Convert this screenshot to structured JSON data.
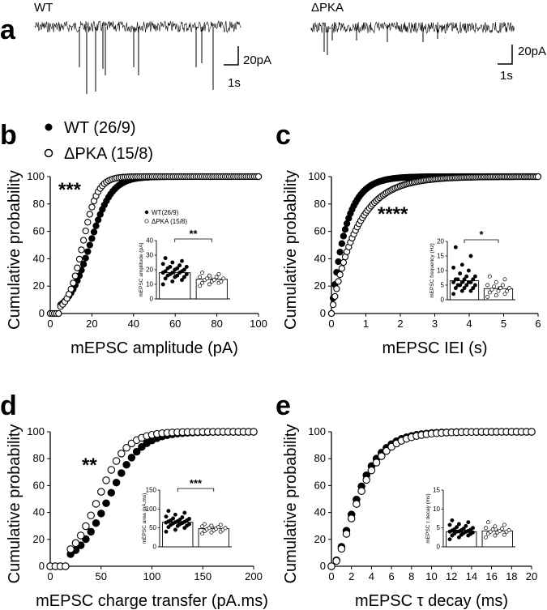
{
  "panel_letters": [
    "a",
    "b",
    "c",
    "d",
    "e"
  ],
  "traces": {
    "wt_label": "WT",
    "dpka_label": "ΔPKA",
    "scale_amp": "20pA",
    "scale_time": "1s"
  },
  "legend": {
    "wt": "WT (26/9)",
    "dpka": "ΔPKA (15/8)"
  },
  "chart_data": [
    {
      "id": "b",
      "type": "scatter",
      "xlabel": "mEPSC amplitude (pA)",
      "ylabel": "Cumulative probability",
      "xlim": [
        0,
        100
      ],
      "ylim": [
        0,
        100
      ],
      "xticks": [
        0,
        20,
        40,
        60,
        80,
        100
      ],
      "yticks": [
        0,
        20,
        40,
        60,
        80,
        100
      ],
      "significance": "***",
      "series": [
        {
          "name": "WT (26/9)",
          "cdf": {
            "kind": "logistic",
            "m": 19,
            "s": 5.2,
            "x0": 5
          },
          "points": 100
        },
        {
          "name": "ΔPKA (15/8)",
          "cdf": {
            "kind": "logistic",
            "m": 15.5,
            "s": 3.6,
            "x0": 5
          },
          "points": 100
        }
      ],
      "inset": {
        "ylabel": "mEPSC amplitude (pA)",
        "ylim": [
          0,
          40
        ],
        "yticks": [
          0,
          10,
          20,
          30,
          40
        ],
        "legend": [
          "WT(26/9)",
          "ΔPKA (15/8)"
        ],
        "significance": "**",
        "groups": [
          {
            "name": "WT",
            "mean": 18,
            "values": [
              10,
              12,
              13,
              14,
              15,
              15,
              16,
              16,
              17,
              17,
              18,
              18,
              18,
              19,
              19,
              20,
              20,
              21,
              21,
              22,
              22,
              23,
              24,
              25,
              26,
              28
            ]
          },
          {
            "name": "ΔPKA",
            "mean": 13.5,
            "values": [
              9,
              10,
              11,
              11,
              12,
              12,
              13,
              13,
              14,
              14,
              15,
              15,
              16,
              17,
              18
            ]
          }
        ]
      }
    },
    {
      "id": "c",
      "type": "scatter",
      "xlabel": "mEPSC IEI (s)",
      "ylabel": "Cumulative probability",
      "xlim": [
        0,
        6
      ],
      "ylim": [
        0,
        100
      ],
      "xticks": [
        0,
        1,
        2,
        3,
        4,
        5,
        6
      ],
      "yticks": [
        0,
        20,
        40,
        60,
        80,
        100
      ],
      "significance": "****",
      "series": [
        {
          "name": "WT (26/9)",
          "cdf": {
            "kind": "exp",
            "tau": 0.42
          },
          "points": 120
        },
        {
          "name": "ΔPKA (15/8)",
          "cdf": {
            "kind": "exp",
            "tau": 0.75
          },
          "points": 120
        }
      ],
      "inset": {
        "ylabel": "mEPSC frequency (Hz)",
        "ylim": [
          0,
          20
        ],
        "yticks": [
          0,
          5,
          10,
          15,
          20
        ],
        "significance": "*",
        "groups": [
          {
            "name": "WT",
            "mean": 6.5,
            "values": [
              2,
              3,
              3,
              4,
              4,
              4,
              5,
              5,
              5,
              5,
              6,
              6,
              6,
              6,
              7,
              7,
              7,
              7,
              8,
              8,
              9,
              10,
              11,
              12,
              15,
              18
            ]
          },
          {
            "name": "ΔPKA",
            "mean": 3.8,
            "values": [
              1,
              1.5,
              2,
              2.5,
              3,
              3,
              3.5,
              4,
              4,
              4.5,
              5,
              5,
              6,
              7,
              8
            ]
          }
        ]
      }
    },
    {
      "id": "d",
      "type": "scatter",
      "xlabel": "mEPSC charge transfer (pA.ms)",
      "ylabel": "Cumulative probability",
      "xlim": [
        0,
        200
      ],
      "ylim": [
        0,
        100
      ],
      "xticks": [
        0,
        50,
        100,
        150,
        200
      ],
      "yticks": [
        0,
        20,
        40,
        60,
        80,
        100
      ],
      "significance": "**",
      "series": [
        {
          "name": "WT (26/9)",
          "cdf": {
            "kind": "logistic",
            "m": 57,
            "s": 16,
            "x0": 20
          },
          "points": 40
        },
        {
          "name": "ΔPKA (15/8)",
          "cdf": {
            "kind": "logistic",
            "m": 47,
            "s": 14,
            "x0": 20
          },
          "points": 40
        }
      ],
      "inset": {
        "ylabel": "mEPSC area (pA.ms)",
        "ylim": [
          0,
          150
        ],
        "yticks": [
          0,
          50,
          100,
          150
        ],
        "significance": "***",
        "groups": [
          {
            "name": "WT",
            "mean": 65,
            "values": [
              40,
              45,
              50,
              52,
              55,
              56,
              58,
              60,
              60,
              62,
              63,
              64,
              65,
              66,
              67,
              68,
              70,
              70,
              72,
              74,
              75,
              78,
              80,
              85,
              90,
              95
            ]
          },
          {
            "name": "ΔPKA",
            "mean": 48,
            "values": [
              35,
              38,
              40,
              42,
              44,
              45,
              46,
              48,
              50,
              50,
              52,
              54,
              56,
              58,
              60
            ]
          }
        ]
      }
    },
    {
      "id": "e",
      "type": "scatter",
      "xlabel": "mEPSC τ decay (ms)",
      "ylabel": "Cumulative probability",
      "xlim": [
        0,
        20
      ],
      "ylim": [
        0,
        100
      ],
      "xticks": [
        0,
        2,
        4,
        6,
        8,
        10,
        12,
        14,
        16,
        18,
        20
      ],
      "yticks": [
        0,
        20,
        40,
        60,
        80,
        100
      ],
      "series": [
        {
          "name": "WT (26/9)",
          "cdf": {
            "kind": "gamma2",
            "scale": 1.5
          },
          "points": 40
        },
        {
          "name": "ΔPKA (15/8)",
          "cdf": {
            "kind": "gamma2",
            "scale": 1.6
          },
          "points": 40
        }
      ],
      "inset": {
        "ylabel": "mEPSC τ decay (ms)",
        "ylim": [
          0,
          15
        ],
        "yticks": [
          0,
          5,
          10,
          15
        ],
        "groups": [
          {
            "name": "WT",
            "mean": 4.0,
            "values": [
              2,
              2.5,
              3,
              3,
              3.2,
              3.4,
              3.5,
              3.6,
              3.8,
              4,
              4,
              4,
              4.1,
              4.2,
              4.3,
              4.4,
              4.5,
              4.6,
              4.8,
              5,
              5.2,
              5.5,
              5.8,
              6,
              6.5,
              7
            ]
          },
          {
            "name": "ΔPKA",
            "mean": 4.2,
            "values": [
              2.5,
              3,
              3.2,
              3.5,
              3.8,
              4,
              4,
              4.2,
              4.4,
              4.6,
              4.8,
              5,
              5.4,
              5.8,
              6.5
            ]
          }
        ]
      }
    }
  ]
}
